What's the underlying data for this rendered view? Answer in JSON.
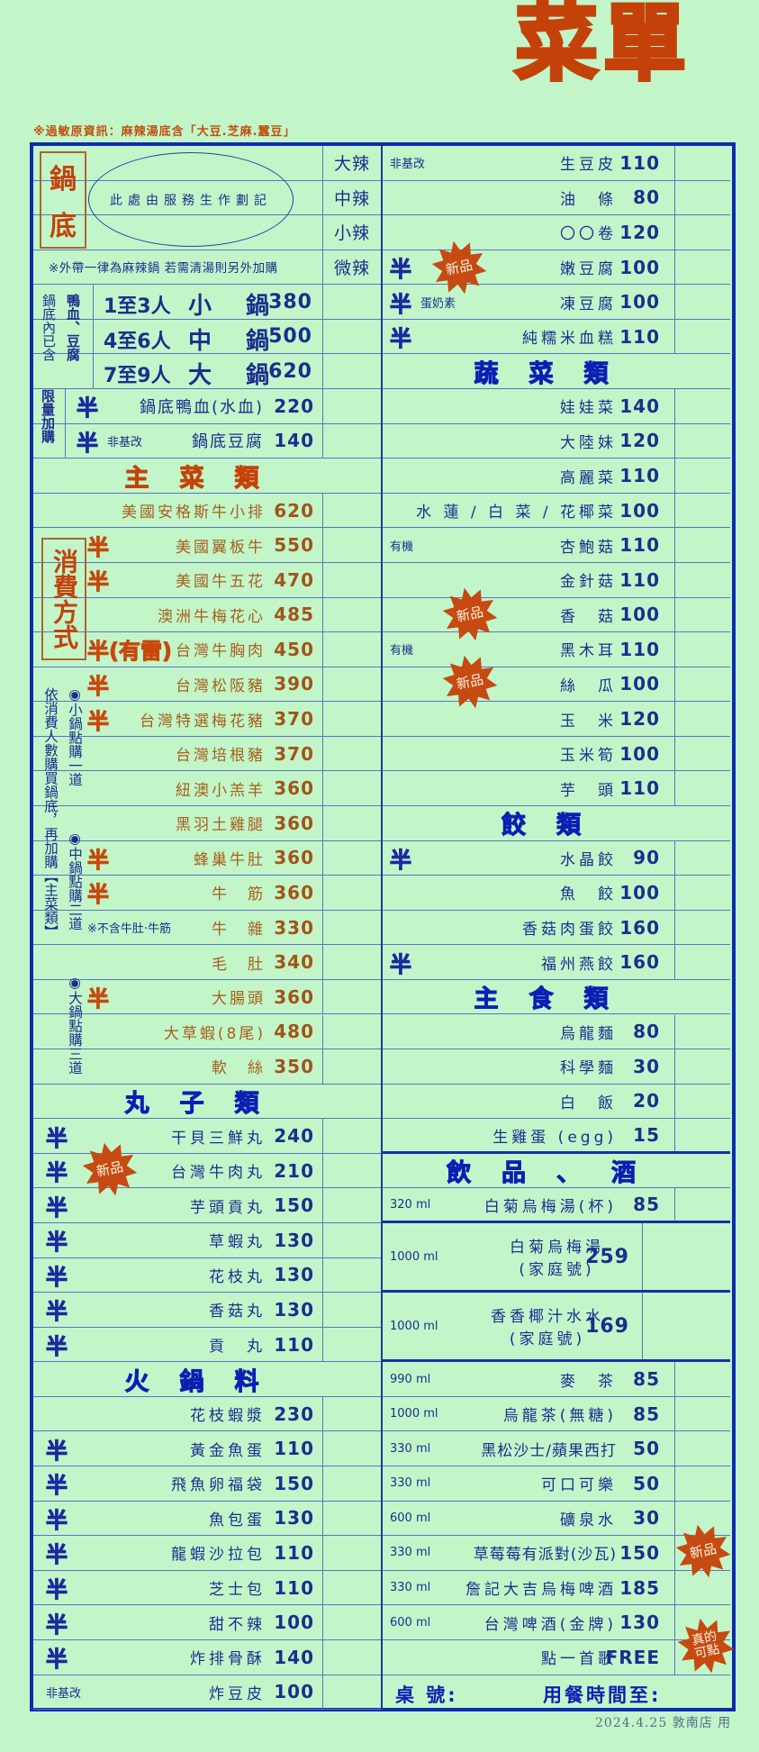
{
  "title": "菜單",
  "allergen_note": "※過敏原資訊：麻辣湯底含「大豆.芝麻.蠶豆」",
  "hotpot": {
    "title_chars": [
      "鍋",
      "底"
    ],
    "oval_text": "此處由服務生作劃記",
    "spice_levels": [
      "大辣",
      "中辣",
      "小辣",
      "微辣"
    ],
    "takeout_note": "※外帶一律為麻辣鍋 若需清湯則另外加購",
    "included_label": "鍋底內已含",
    "included_items": "鴨血、豆腐",
    "sizes": [
      {
        "people": "1至3人",
        "name": "小　鍋",
        "price": "380"
      },
      {
        "people": "4至6人",
        "name": "中　鍋",
        "price": "500"
      },
      {
        "people": "7至9人",
        "name": "大　鍋",
        "price": "620"
      }
    ],
    "addon_label": "限量加購",
    "addons": [
      {
        "half": "半",
        "note": "",
        "name": "鍋底鴨血(水血)",
        "price": "220"
      },
      {
        "half": "半",
        "note": "非基改",
        "name": "鍋底豆腐",
        "price": "140"
      }
    ]
  },
  "consumption": {
    "title": "消費方式",
    "rule": "依消費人數購買鍋底，再加購【主菜類】",
    "bullets": [
      "◉小鍋點購一道",
      "◉中鍋點購二道",
      "◉大鍋點購三道"
    ]
  },
  "left_rows": [
    {
      "t": "header",
      "text": "主菜類",
      "color": "#c4420a"
    },
    {
      "t": "item",
      "half": "",
      "note": "",
      "name": "美國安格斯牛小排",
      "price": "620"
    },
    {
      "t": "item",
      "half": "半",
      "note": "",
      "name": "美國翼板牛",
      "price": "550"
    },
    {
      "t": "item",
      "half": "半",
      "note": "",
      "name": "美國牛五花",
      "price": "470"
    },
    {
      "t": "item",
      "half": "",
      "note": "",
      "name": "澳洲牛梅花心",
      "price": "485"
    },
    {
      "t": "item",
      "half": "半(有雷)",
      "note": "",
      "name": "台灣牛胸肉",
      "price": "450"
    },
    {
      "t": "item",
      "half": "半",
      "note": "",
      "name": "台灣松阪豬",
      "price": "390"
    },
    {
      "t": "item",
      "half": "半",
      "note": "",
      "name": "台灣特選梅花豬",
      "price": "370"
    },
    {
      "t": "item",
      "half": "",
      "note": "",
      "name": "台灣培根豬",
      "price": "370"
    },
    {
      "t": "item",
      "half": "",
      "note": "",
      "name": "紐澳小羔羊",
      "price": "360"
    },
    {
      "t": "item",
      "half": "",
      "note": "",
      "name": "黑羽土雞腿",
      "price": "360"
    },
    {
      "t": "item",
      "half": "半",
      "note": "",
      "name": "蜂巢牛肚",
      "price": "360"
    },
    {
      "t": "item",
      "half": "半",
      "note": "",
      "name": "牛　筋",
      "price": "360"
    },
    {
      "t": "item",
      "half": "",
      "note": "※不含牛肚‧牛筋",
      "name": "牛　雜",
      "price": "330"
    },
    {
      "t": "item",
      "half": "",
      "note": "",
      "name": "毛　肚",
      "price": "340"
    },
    {
      "t": "item",
      "half": "半",
      "note": "",
      "name": "大腸頭",
      "price": "360"
    },
    {
      "t": "item",
      "half": "",
      "note": "",
      "name": "大草蝦(8尾)",
      "price": "480"
    },
    {
      "t": "item",
      "half": "",
      "note": "",
      "name": "軟　絲",
      "price": "350"
    },
    {
      "t": "header",
      "text": "丸子類",
      "color": "#0b1fb4"
    },
    {
      "t": "item",
      "half": "半",
      "note": "",
      "name": "干貝三鮮丸",
      "price": "240"
    },
    {
      "t": "item",
      "half": "半",
      "note": "",
      "name": "台灣牛肉丸",
      "price": "210"
    },
    {
      "t": "item",
      "half": "半",
      "note": "",
      "name": "芋頭貢丸",
      "price": "150"
    },
    {
      "t": "item",
      "half": "半",
      "note": "",
      "name": "草蝦丸",
      "price": "130"
    },
    {
      "t": "item",
      "half": "半",
      "note": "",
      "name": "花枝丸",
      "price": "130"
    },
    {
      "t": "item",
      "half": "半",
      "note": "",
      "name": "香菇丸",
      "price": "130"
    },
    {
      "t": "item",
      "half": "半",
      "note": "",
      "name": "貢　丸",
      "price": "110"
    },
    {
      "t": "header",
      "text": "火鍋料",
      "color": "#0b1fb4"
    },
    {
      "t": "item",
      "half": "",
      "note": "",
      "name": "花枝蝦漿",
      "price": "230"
    },
    {
      "t": "item",
      "half": "半",
      "note": "",
      "name": "黃金魚蛋",
      "price": "110"
    },
    {
      "t": "item",
      "half": "半",
      "note": "",
      "name": "飛魚卵福袋",
      "price": "150"
    },
    {
      "t": "item",
      "half": "半",
      "note": "",
      "name": "魚包蛋",
      "price": "130"
    },
    {
      "t": "item",
      "half": "半",
      "note": "",
      "name": "龍蝦沙拉包",
      "price": "110"
    },
    {
      "t": "item",
      "half": "半",
      "note": "",
      "name": "芝士包",
      "price": "110"
    },
    {
      "t": "item",
      "half": "半",
      "note": "",
      "name": "甜不辣",
      "price": "100"
    },
    {
      "t": "item",
      "half": "半",
      "note": "",
      "name": "炸排骨酥",
      "price": "140"
    },
    {
      "t": "item",
      "half": "",
      "note": "非基改",
      "name": "炸豆皮",
      "price": "100"
    }
  ],
  "right_rows": [
    {
      "t": "item",
      "half": "",
      "note": "非基改",
      "name": "生豆皮",
      "price": "110"
    },
    {
      "t": "item",
      "half": "",
      "note": "",
      "name": "油　條",
      "price": "80"
    },
    {
      "t": "item",
      "half": "",
      "note": "",
      "name": "〇〇卷",
      "price": "120"
    },
    {
      "t": "item",
      "half": "半",
      "note": "",
      "name": "嫩豆腐",
      "price": "100"
    },
    {
      "t": "item",
      "half": "半",
      "note": "蛋奶素",
      "name": "凍豆腐",
      "price": "100"
    },
    {
      "t": "item",
      "half": "半",
      "note": "",
      "name": "純糯米血糕",
      "price": "110"
    },
    {
      "t": "header",
      "text": "蔬菜類",
      "color": "#0b1fb4"
    },
    {
      "t": "item",
      "half": "",
      "note": "",
      "name": "娃娃菜",
      "price": "140"
    },
    {
      "t": "item",
      "half": "",
      "note": "",
      "name": "大陸妹",
      "price": "120"
    },
    {
      "t": "item",
      "half": "",
      "note": "",
      "name": "高麗菜",
      "price": "110"
    },
    {
      "t": "item",
      "half": "",
      "note": "",
      "name": "水 蓮 / 白 菜 / 花椰菜",
      "price": "100"
    },
    {
      "t": "item",
      "half": "",
      "note": "有機",
      "name": "杏鮑菇",
      "price": "110"
    },
    {
      "t": "item",
      "half": "",
      "note": "",
      "name": "金針菇",
      "price": "110"
    },
    {
      "t": "item",
      "half": "",
      "note": "",
      "name": "香　菇",
      "price": "100"
    },
    {
      "t": "item",
      "half": "",
      "note": "有機",
      "name": "黑木耳",
      "price": "110"
    },
    {
      "t": "item",
      "half": "",
      "note": "",
      "name": "絲　瓜",
      "price": "100"
    },
    {
      "t": "item",
      "half": "",
      "note": "",
      "name": "玉　米",
      "price": "120"
    },
    {
      "t": "item",
      "half": "",
      "note": "",
      "name": "玉米筍",
      "price": "100"
    },
    {
      "t": "item",
      "half": "",
      "note": "",
      "name": "芋　頭",
      "price": "110"
    },
    {
      "t": "header",
      "text": "餃類",
      "color": "#0b1fb4"
    },
    {
      "t": "item",
      "half": "半",
      "note": "",
      "name": "水晶餃",
      "price": "90"
    },
    {
      "t": "item",
      "half": "",
      "note": "",
      "name": "魚　餃",
      "price": "100"
    },
    {
      "t": "item",
      "half": "",
      "note": "",
      "name": "香菇肉蛋餃",
      "price": "160"
    },
    {
      "t": "item",
      "half": "半",
      "note": "",
      "name": "福州燕餃",
      "price": "160"
    },
    {
      "t": "header",
      "text": "主食類",
      "color": "#0b1fb4"
    },
    {
      "t": "item",
      "half": "",
      "note": "",
      "name": "烏龍麵",
      "price": "80"
    },
    {
      "t": "item",
      "half": "",
      "note": "",
      "name": "科學麵",
      "price": "30"
    },
    {
      "t": "item",
      "half": "",
      "note": "",
      "name": "白　飯",
      "price": "20"
    },
    {
      "t": "item",
      "half": "",
      "note": "",
      "name": "生雞蛋 (egg)",
      "price": "15"
    },
    {
      "t": "header",
      "text": "飲品、酒",
      "color": "#0b1fb4"
    },
    {
      "t": "item",
      "half": "",
      "note": "320 ml",
      "name": "白菊烏梅湯(杯)",
      "price": "85"
    },
    {
      "t": "double",
      "note": "1000 ml",
      "name": "白菊烏梅湯",
      "name2": "(家庭號)",
      "price": "259"
    },
    {
      "t": "double",
      "note": "1000 ml",
      "name": "香香椰汁水水",
      "name2": "(家庭號)",
      "price": "169"
    },
    {
      "t": "item",
      "half": "",
      "note": "990 ml",
      "name": "麥　茶",
      "price": "85"
    },
    {
      "t": "item",
      "half": "",
      "note": "1000 ml",
      "name": "烏龍茶(無糖)",
      "price": "85"
    },
    {
      "t": "item",
      "half": "",
      "note": "330 ml",
      "name": "黑松沙士/蘋果西打",
      "price": "50"
    },
    {
      "t": "item",
      "half": "",
      "note": "330 ml",
      "name": "可口可樂",
      "price": "50"
    },
    {
      "t": "item",
      "half": "",
      "note": "600 ml",
      "name": "礦泉水",
      "price": "30"
    },
    {
      "t": "item",
      "half": "",
      "note": "330 ml",
      "name": "草莓莓有派對(沙瓦)",
      "price": "150"
    },
    {
      "t": "item",
      "half": "",
      "note": "330 ml",
      "name": "詹記大吉烏梅啤酒",
      "price": "185"
    },
    {
      "t": "item",
      "half": "",
      "note": "600 ml",
      "name": "台灣啤酒(金牌)",
      "price": "130"
    },
    {
      "t": "item",
      "half": "",
      "note": "",
      "name": "點一首歌",
      "price": "FREE"
    },
    {
      "t": "footer",
      "table_label": "桌 號:",
      "time_label": "用餐時間至:"
    }
  ],
  "badges": {
    "new": "新品",
    "song": "真的可點"
  },
  "footer_stamp": "2024.4.25 敦南店 用",
  "colors": {
    "background": "#c2f6c9",
    "blue": "#1b2e8e",
    "heading_blue": "#0b1fb4",
    "orange": "#c4420a",
    "main_course_brown": "#a85f1c"
  }
}
